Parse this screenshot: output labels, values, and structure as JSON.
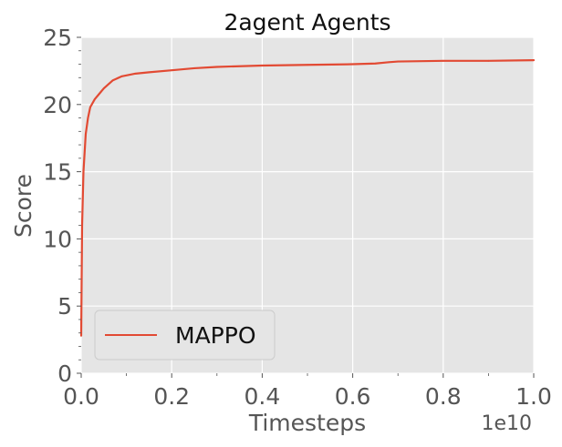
{
  "chart_data": {
    "type": "line",
    "title": "2agent Agents",
    "xlabel": "Timesteps",
    "ylabel": "Score",
    "x_offset_label": "1e10",
    "xlim": [
      0,
      1.0
    ],
    "ylim": [
      0,
      25
    ],
    "x_ticks": [
      "0.0",
      "0.2",
      "0.4",
      "0.6",
      "0.8",
      "1.0"
    ],
    "y_ticks": [
      "0",
      "5",
      "10",
      "15",
      "20",
      "25"
    ],
    "grid": true,
    "legend_position": "lower-left",
    "series": [
      {
        "name": "MAPPO",
        "color": "#E24A33",
        "x": [
          0.0,
          0.002,
          0.005,
          0.01,
          0.015,
          0.02,
          0.03,
          0.04,
          0.05,
          0.07,
          0.09,
          0.12,
          0.15,
          0.2,
          0.25,
          0.3,
          0.4,
          0.5,
          0.6,
          0.65,
          0.68,
          0.7,
          0.8,
          0.9,
          1.0
        ],
        "values": [
          2.8,
          11.0,
          15.0,
          17.8,
          19.0,
          19.8,
          20.4,
          20.8,
          21.2,
          21.8,
          22.1,
          22.3,
          22.4,
          22.55,
          22.7,
          22.8,
          22.9,
          22.95,
          23.0,
          23.05,
          23.15,
          23.2,
          23.25,
          23.25,
          23.3
        ]
      }
    ]
  }
}
